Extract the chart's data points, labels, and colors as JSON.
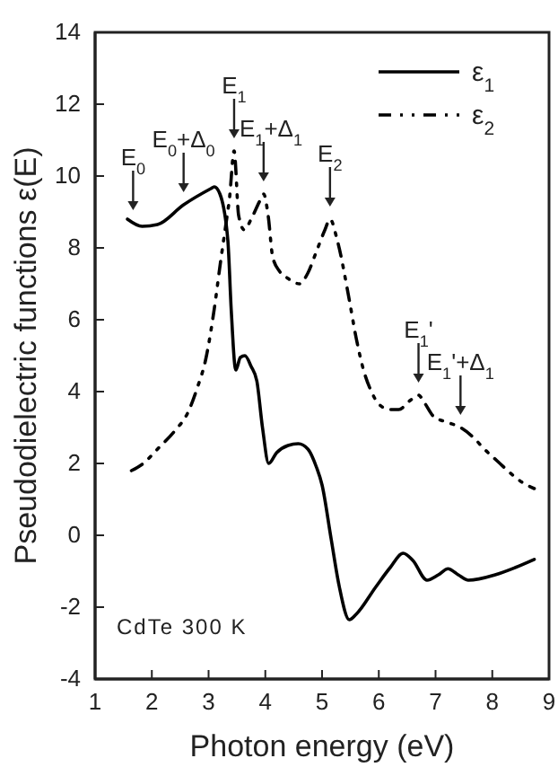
{
  "chart_data": {
    "type": "line",
    "xlabel": "Photon energy (eV)",
    "ylabel": "Pseudodielectric functions ε(E)",
    "xlim": [
      1,
      9
    ],
    "xticks": [
      1,
      2,
      3,
      4,
      5,
      6,
      7,
      8,
      9
    ],
    "ylim": [
      -4,
      14
    ],
    "yticks": [
      -4,
      -2,
      0,
      2,
      4,
      6,
      8,
      10,
      12,
      14
    ],
    "grid": false,
    "legend": "top right",
    "marker": "none",
    "series": [
      {
        "name": "ε$_{1}$",
        "color": "#000000",
        "line_style": "solid",
        "x": [
          1.57,
          1.83,
          2.1,
          2.56,
          3.04,
          3.1,
          3.2,
          3.34,
          3.4,
          3.48,
          3.56,
          3.64,
          3.75,
          3.85,
          3.95,
          4.06,
          4.2,
          4.4,
          4.58,
          4.75,
          4.9,
          5.0,
          5.16,
          5.3,
          5.48,
          5.6,
          5.95,
          6.2,
          6.43,
          6.6,
          6.85,
          7.05,
          7.22,
          7.4,
          7.58,
          8.05,
          8.4,
          8.74
        ],
        "values": [
          8.8,
          8.6,
          8.65,
          9.2,
          9.65,
          9.7,
          9.5,
          8.2,
          6.25,
          4.6,
          4.95,
          5.0,
          4.7,
          4.3,
          3.0,
          2.0,
          2.3,
          2.5,
          2.55,
          2.4,
          1.9,
          1.4,
          -0.1,
          -1.4,
          -2.35,
          -2.2,
          -1.43,
          -0.9,
          -0.5,
          -0.7,
          -1.25,
          -1.1,
          -0.93,
          -1.1,
          -1.25,
          -1.1,
          -0.9,
          -0.67
        ]
      },
      {
        "name": "ε$_{2}$",
        "color": "#000000",
        "line_style": "dashed",
        "x": [
          1.64,
          1.85,
          2.1,
          2.4,
          2.63,
          2.8,
          2.95,
          3.1,
          3.21,
          3.3,
          3.37,
          3.45,
          3.53,
          3.63,
          3.75,
          3.9,
          3.97,
          4.05,
          4.13,
          4.25,
          4.4,
          4.6,
          4.75,
          4.9,
          5.05,
          5.14,
          5.27,
          5.48,
          5.6,
          5.74,
          5.87,
          6.0,
          6.2,
          6.35,
          6.55,
          6.7,
          6.8,
          6.97,
          7.2,
          7.44,
          7.65,
          7.86,
          8.1,
          8.38,
          8.55,
          8.74
        ],
        "values": [
          1.8,
          2.0,
          2.4,
          2.9,
          3.4,
          4.1,
          4.9,
          6.3,
          7.6,
          8.6,
          9.4,
          10.7,
          8.9,
          8.5,
          8.8,
          9.3,
          9.5,
          8.9,
          7.75,
          7.35,
          7.15,
          7.0,
          7.3,
          7.9,
          8.5,
          8.8,
          8.2,
          6.55,
          5.5,
          4.55,
          4.0,
          3.65,
          3.5,
          3.5,
          3.75,
          3.9,
          3.7,
          3.3,
          3.15,
          3.0,
          2.75,
          2.4,
          2.05,
          1.65,
          1.45,
          1.3
        ]
      }
    ],
    "annotations": [
      {
        "text": "E$_{0}$",
        "x": 1.67,
        "y": 8.7
      },
      {
        "text": "E$_{0}$+Δ$_{0}$",
        "x": 2.56,
        "y": 9.2
      },
      {
        "text": "E$_{1}$",
        "x": 3.45,
        "y": 10.7
      },
      {
        "text": "E$_{1}$+Δ$_{1}$",
        "x": 3.97,
        "y": 9.5
      },
      {
        "text": "E$_{2}$",
        "x": 5.14,
        "y": 8.8
      },
      {
        "text": "E$_{1}$'",
        "x": 6.7,
        "y": 3.9
      },
      {
        "text": "E$_{1}$'+Δ$_{1}$",
        "x": 7.44,
        "y": 3.0
      },
      "CdTe    300 K"
    ]
  }
}
